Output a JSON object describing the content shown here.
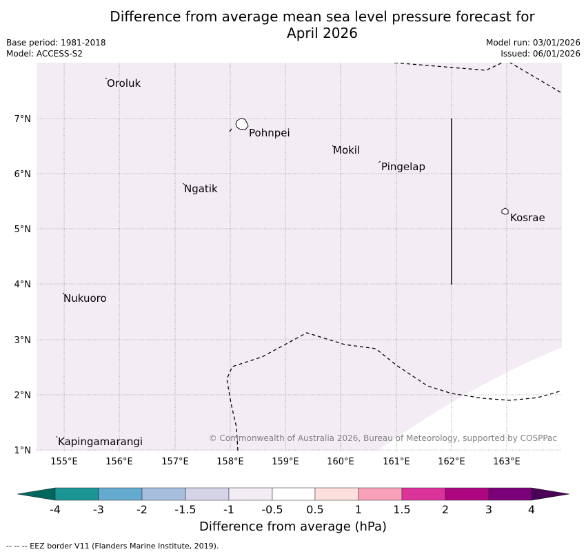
{
  "header": {
    "title_line1": "Difference from average mean sea level pressure forecast for",
    "title_line2": "April 2026",
    "base_period": "Base period: 1981-2018",
    "model": "Model: ACCESS-S2",
    "model_run": "Model run: 03/01/2026",
    "issued": "Issued: 06/01/2026"
  },
  "map": {
    "lat_labels": [
      "7°N",
      "6°N",
      "5°N",
      "4°N",
      "3°N",
      "2°N",
      "1°N"
    ],
    "lon_labels": [
      "155°E",
      "156°E",
      "157°E",
      "158°E",
      "159°E",
      "160°E",
      "161°E",
      "162°E",
      "163°E"
    ],
    "places": [
      {
        "name": "Oroluk"
      },
      {
        "name": "Pohnpei"
      },
      {
        "name": "Mokil"
      },
      {
        "name": "Pingelap"
      },
      {
        "name": "Ngatik"
      },
      {
        "name": "Kosrae"
      },
      {
        "name": "Nukuoro"
      },
      {
        "name": "Kapingamarangi"
      }
    ],
    "copyright": "© Commonwealth of Australia 2026, Bureau of Meteorology, supported by COSPPac",
    "colors": {
      "anomaly_fill": "#f4ecf5",
      "land": "#ffffff"
    }
  },
  "colorbar": {
    "title": "Difference from average (hPa)",
    "tick_labels": [
      "-4",
      "-3",
      "-2",
      "-1.5",
      "-1",
      "-0.5",
      "0.5",
      "1",
      "1.5",
      "2",
      "3",
      "4"
    ],
    "colors": [
      "#00665e",
      "#1b9594",
      "#65abd1",
      "#a7bedd",
      "#d5d3e6",
      "#f4ecf5",
      "#ffffff",
      "#fde0dd",
      "#f9a1b9",
      "#dc339b",
      "#ad0680",
      "#7a0177",
      "#4a0056"
    ]
  },
  "footer": {
    "legend_text": "--  --  -- EEZ border V11 (Flanders Marine Institute, 2019)."
  }
}
